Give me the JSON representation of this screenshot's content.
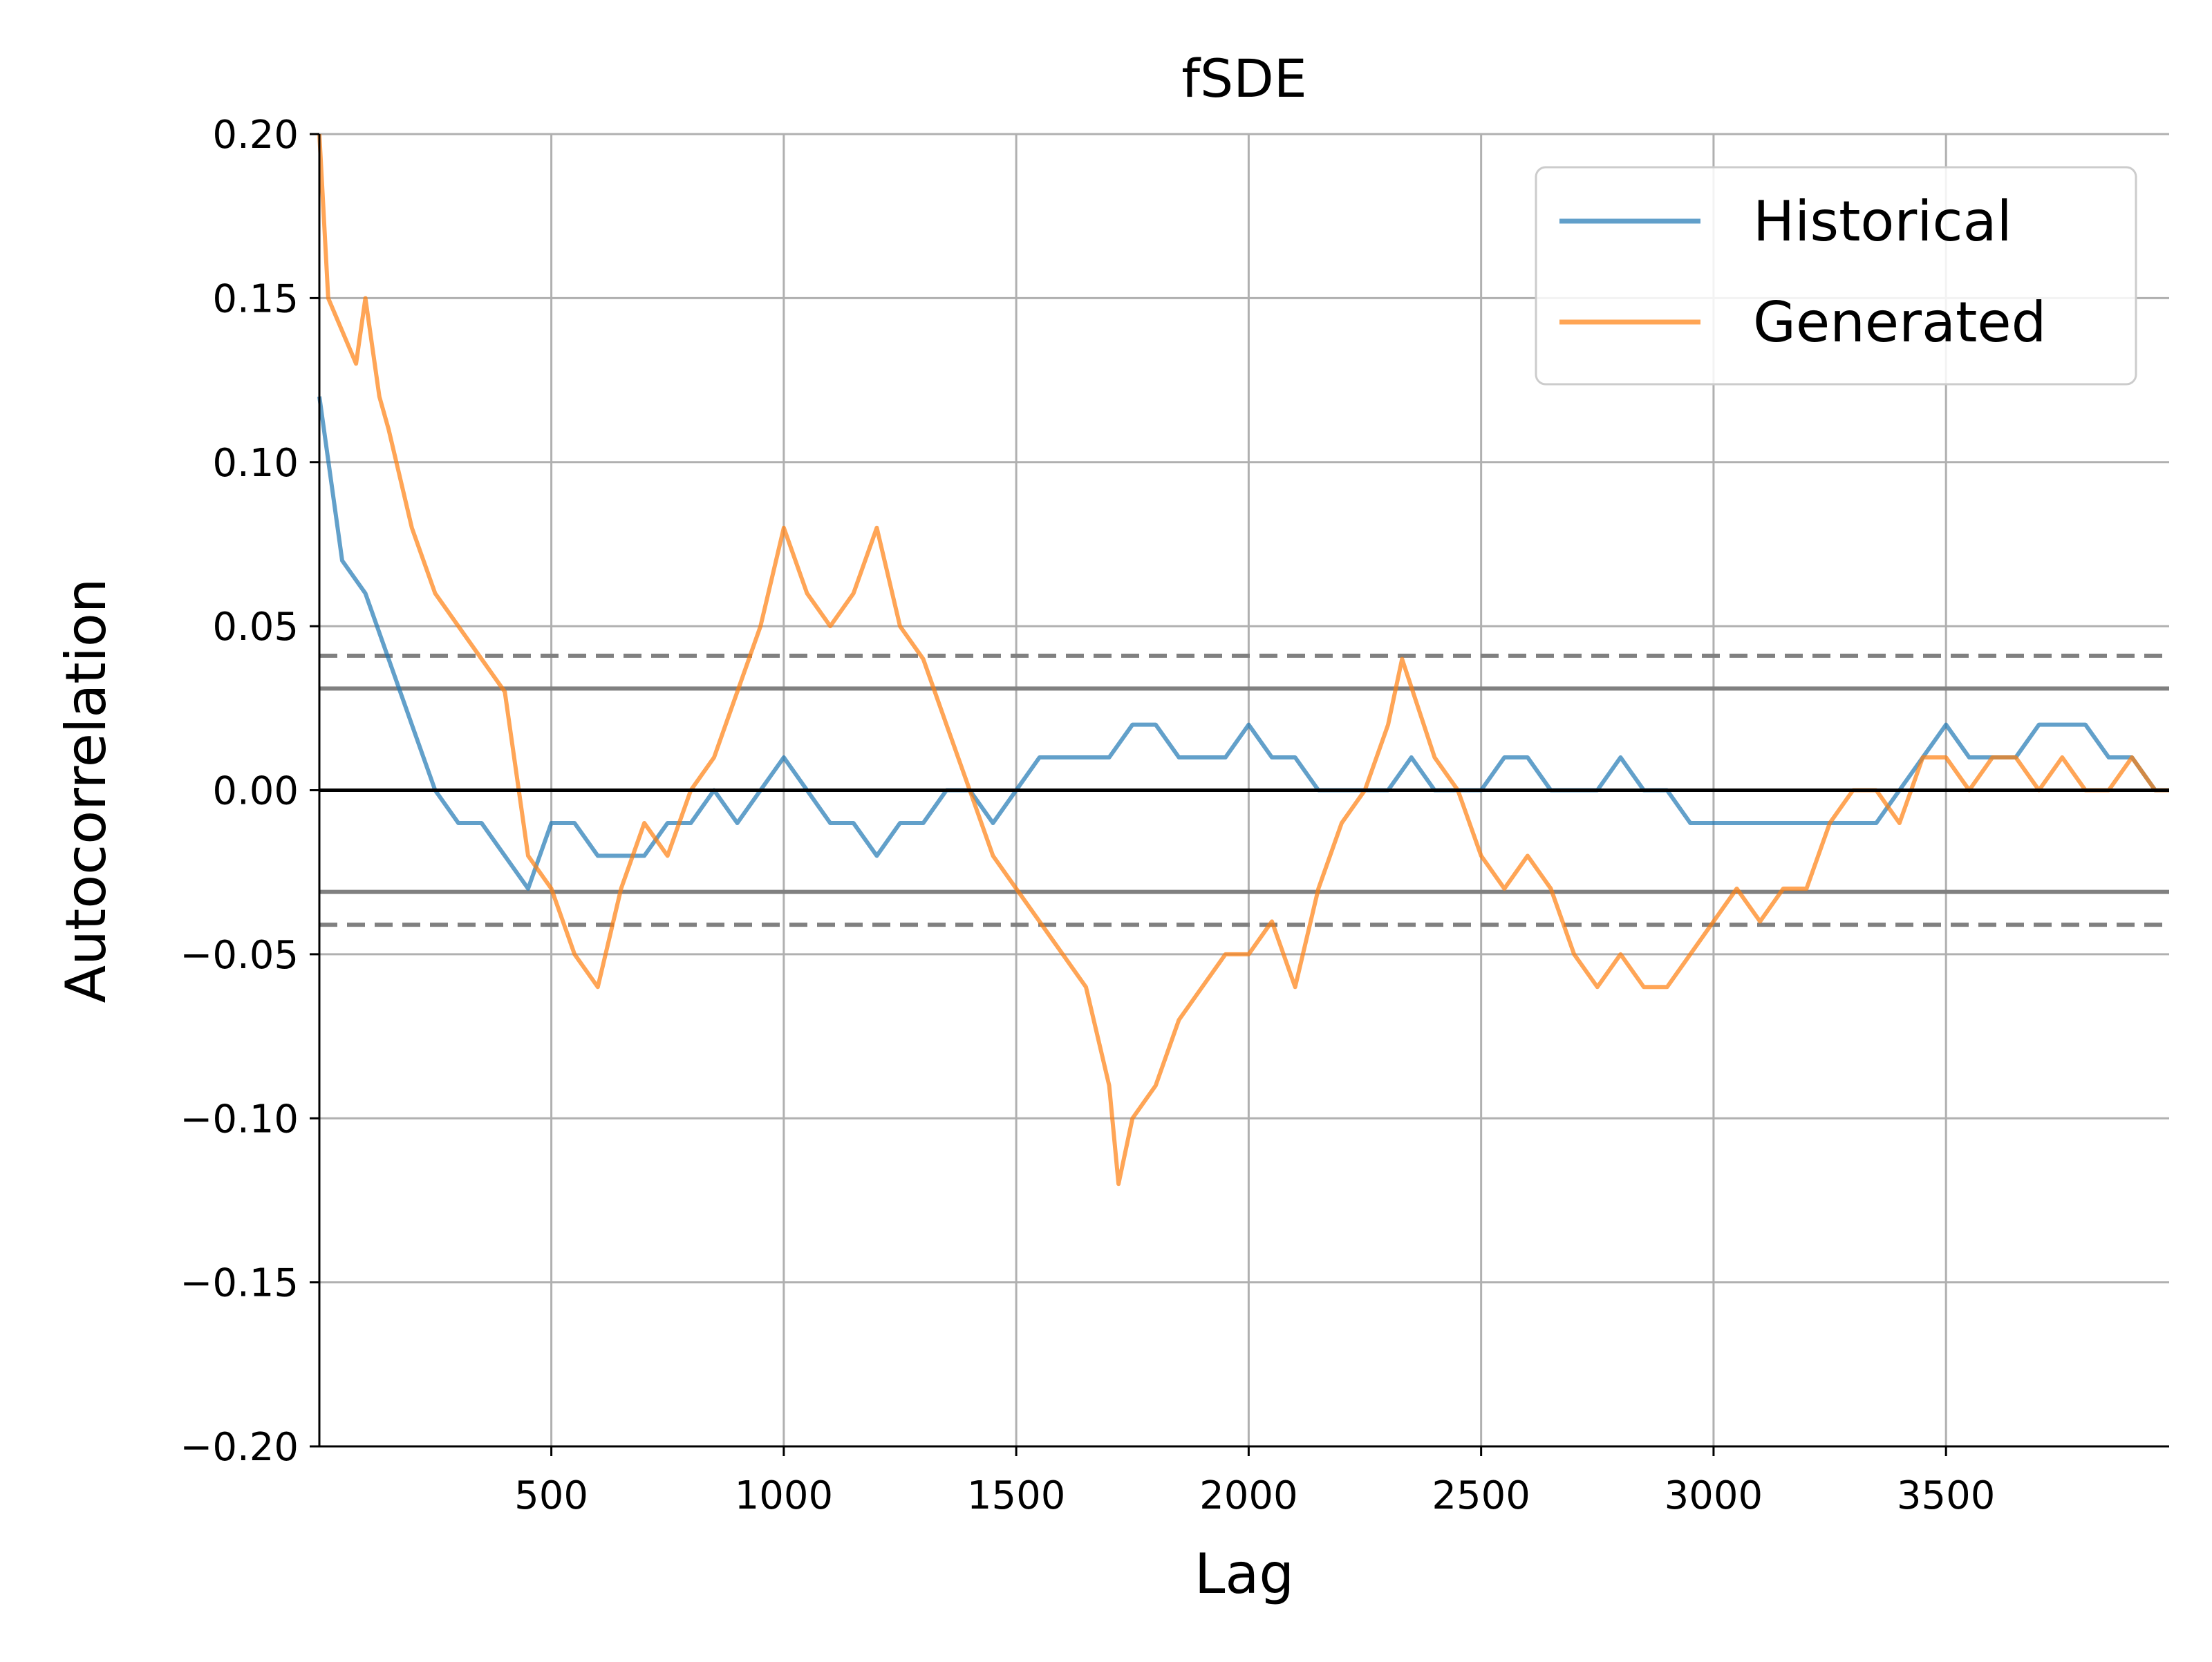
{
  "chart_data": {
    "type": "line",
    "title": "fSDE",
    "xlabel": "Lag",
    "ylabel": "Autocorrelation",
    "xlim": [
      1,
      3980
    ],
    "ylim": [
      -0.2,
      0.2
    ],
    "xticks": [
      500,
      1000,
      1500,
      2000,
      2500,
      3000,
      3500
    ],
    "xtick_labels": [
      "500",
      "1000",
      "1500",
      "2000",
      "2500",
      "3000",
      "3500"
    ],
    "yticks": [
      -0.2,
      -0.15,
      -0.1,
      -0.05,
      0.0,
      0.05,
      0.1,
      0.15,
      0.2
    ],
    "ytick_labels": [
      "−0.20",
      "−0.15",
      "−0.10",
      "−0.05",
      "0.00",
      "0.05",
      "0.10",
      "0.15",
      "0.20"
    ],
    "grid": true,
    "legend_position": "top-right",
    "reference_lines": {
      "zero": 0.0,
      "confidence_95": 0.031,
      "confidence_99": 0.041
    },
    "series": [
      {
        "name": "Historical",
        "color": "#1f77b4",
        "x": [
          1,
          50,
          100,
          150,
          200,
          250,
          300,
          350,
          400,
          450,
          500,
          550,
          600,
          650,
          700,
          750,
          800,
          850,
          900,
          950,
          1000,
          1050,
          1100,
          1150,
          1200,
          1250,
          1300,
          1350,
          1400,
          1450,
          1500,
          1550,
          1600,
          1650,
          1700,
          1750,
          1800,
          1850,
          1900,
          1950,
          2000,
          2050,
          2100,
          2150,
          2200,
          2250,
          2300,
          2350,
          2400,
          2450,
          2500,
          2550,
          2600,
          2650,
          2700,
          2750,
          2800,
          2850,
          2900,
          2950,
          3000,
          3050,
          3100,
          3150,
          3200,
          3250,
          3300,
          3350,
          3400,
          3450,
          3500,
          3550,
          3600,
          3650,
          3700,
          3750,
          3800,
          3850,
          3900,
          3950,
          3980
        ],
        "y": [
          0.12,
          0.07,
          0.06,
          0.04,
          0.02,
          0.0,
          -0.01,
          -0.01,
          -0.02,
          -0.03,
          -0.01,
          -0.01,
          -0.02,
          -0.02,
          -0.02,
          -0.01,
          -0.01,
          0.0,
          -0.01,
          0.0,
          0.01,
          0.0,
          -0.01,
          -0.01,
          -0.02,
          -0.01,
          -0.01,
          0.0,
          0.0,
          -0.01,
          0.0,
          0.01,
          0.01,
          0.01,
          0.01,
          0.02,
          0.02,
          0.01,
          0.01,
          0.01,
          0.02,
          0.01,
          0.01,
          0.0,
          0.0,
          0.0,
          0.0,
          0.01,
          0.0,
          0.0,
          0.0,
          0.01,
          0.01,
          0.0,
          0.0,
          0.0,
          0.01,
          0.0,
          0.0,
          -0.01,
          -0.01,
          -0.01,
          -0.01,
          -0.01,
          -0.01,
          -0.01,
          -0.01,
          -0.01,
          0.0,
          0.01,
          0.02,
          0.01,
          0.01,
          0.01,
          0.02,
          0.02,
          0.02,
          0.01,
          0.01,
          0.0,
          0.0
        ]
      },
      {
        "name": "Generated",
        "color": "#ff7f0e",
        "x": [
          1,
          20,
          50,
          80,
          100,
          130,
          150,
          200,
          250,
          300,
          350,
          400,
          450,
          500,
          550,
          600,
          650,
          700,
          750,
          800,
          850,
          900,
          950,
          1000,
          1050,
          1100,
          1150,
          1200,
          1250,
          1300,
          1350,
          1400,
          1450,
          1500,
          1550,
          1600,
          1650,
          1700,
          1720,
          1750,
          1800,
          1850,
          1900,
          1950,
          2000,
          2050,
          2100,
          2150,
          2200,
          2250,
          2300,
          2330,
          2400,
          2450,
          2500,
          2550,
          2600,
          2650,
          2700,
          2750,
          2800,
          2850,
          2900,
          2950,
          3000,
          3050,
          3100,
          3150,
          3200,
          3250,
          3300,
          3350,
          3400,
          3450,
          3500,
          3550,
          3600,
          3650,
          3700,
          3750,
          3800,
          3850,
          3900,
          3950,
          3980
        ],
        "y": [
          0.2,
          0.15,
          0.14,
          0.13,
          0.15,
          0.12,
          0.11,
          0.08,
          0.06,
          0.05,
          0.04,
          0.03,
          -0.02,
          -0.03,
          -0.05,
          -0.06,
          -0.03,
          -0.01,
          -0.02,
          0.0,
          0.01,
          0.03,
          0.05,
          0.08,
          0.06,
          0.05,
          0.06,
          0.08,
          0.05,
          0.04,
          0.02,
          0.0,
          -0.02,
          -0.03,
          -0.04,
          -0.05,
          -0.06,
          -0.09,
          -0.12,
          -0.1,
          -0.09,
          -0.07,
          -0.06,
          -0.05,
          -0.05,
          -0.04,
          -0.06,
          -0.03,
          -0.01,
          0.0,
          0.02,
          0.04,
          0.01,
          0.0,
          -0.02,
          -0.03,
          -0.02,
          -0.03,
          -0.05,
          -0.06,
          -0.05,
          -0.06,
          -0.06,
          -0.05,
          -0.04,
          -0.03,
          -0.04,
          -0.03,
          -0.03,
          -0.01,
          0.0,
          0.0,
          -0.01,
          0.01,
          0.01,
          0.0,
          0.01,
          0.01,
          0.0,
          0.01,
          0.0,
          0.0,
          0.01,
          0.0,
          0.0
        ]
      }
    ]
  }
}
